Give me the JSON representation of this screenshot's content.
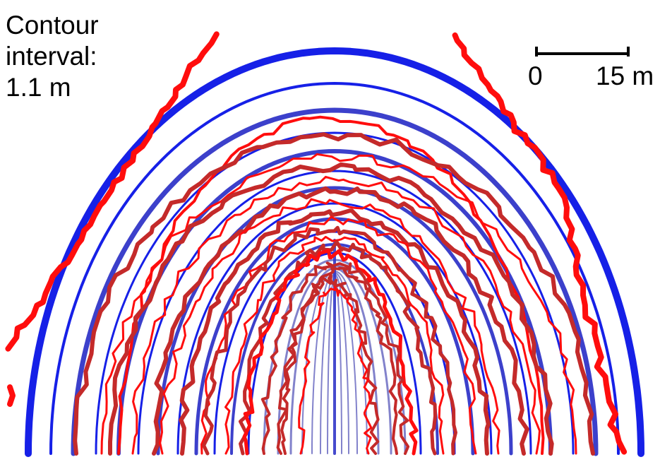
{
  "interval_label": {
    "line1": "Contour",
    "line2": "interval:",
    "line3": "1.1 m"
  },
  "scale_bar": {
    "start_label": "0",
    "end_label": "15 m"
  },
  "colors": {
    "model_contour": "#0a14e6",
    "model_contour_inner": "#7b7bc8",
    "model_contour_mid": "#3236c8",
    "observed_contour": "#ff0d0d",
    "observed_contour_dark": "#c42a2a",
    "scale_bar": "#000000"
  }
}
